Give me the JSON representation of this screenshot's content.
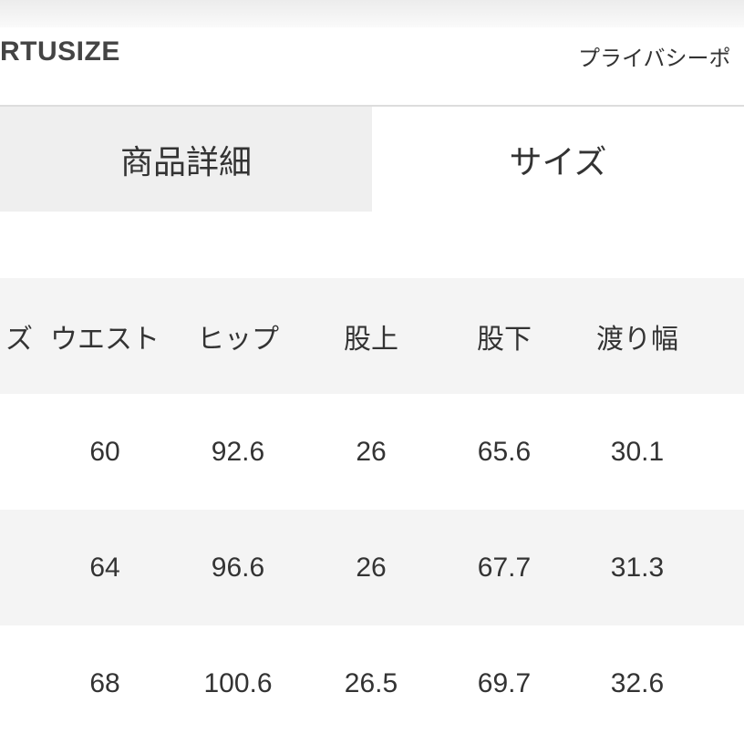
{
  "header": {
    "brand": "RTUSIZE",
    "privacy_link": "プライバシーポ"
  },
  "tabs": [
    {
      "label": "商品詳細",
      "active": false
    },
    {
      "label": "サイズ",
      "active": true
    }
  ],
  "size_table": {
    "columns": [
      "ズ",
      "ウエスト",
      "ヒップ",
      "股上",
      "股下",
      "渡り幅",
      ""
    ],
    "rows": [
      [
        "",
        "60",
        "92.6",
        "26",
        "65.6",
        "30.1",
        ""
      ],
      [
        "",
        "64",
        "96.6",
        "26",
        "67.7",
        "31.3",
        ""
      ],
      [
        "",
        "68",
        "100.6",
        "26.5",
        "69.7",
        "32.6",
        ""
      ]
    ]
  }
}
